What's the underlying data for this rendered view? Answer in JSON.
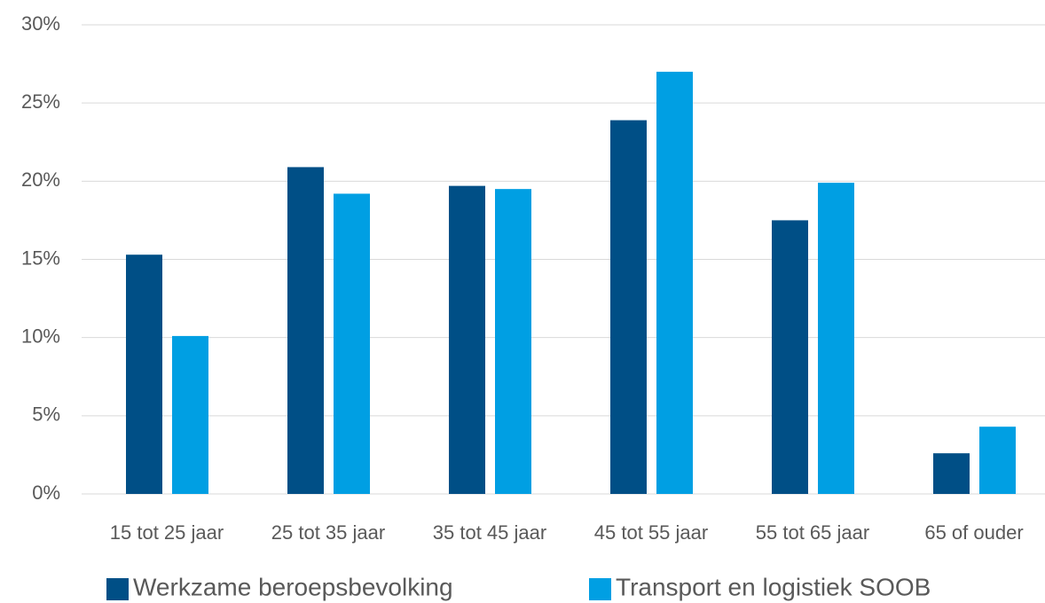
{
  "chart_data": {
    "type": "bar",
    "categories": [
      "15 tot 25 jaar",
      "25 tot 35 jaar",
      "35 tot 45 jaar",
      "45 tot 55 jaar",
      "55 tot 65 jaar",
      "65 of ouder"
    ],
    "series": [
      {
        "name": "Werkzame beroepsbevolking",
        "color": "#004f86",
        "values": [
          15.3,
          20.9,
          19.7,
          23.9,
          17.5,
          2.6
        ]
      },
      {
        "name": "Transport en logistiek SOOB",
        "color": "#009fe3",
        "values": [
          10.1,
          19.2,
          19.5,
          27.0,
          19.9,
          4.3
        ]
      }
    ],
    "ylim": [
      0,
      30
    ],
    "yticks": [
      {
        "value": 0,
        "label": "0%"
      },
      {
        "value": 5,
        "label": "5%"
      },
      {
        "value": 10,
        "label": "10%"
      },
      {
        "value": 15,
        "label": "15%"
      },
      {
        "value": 20,
        "label": "20%"
      },
      {
        "value": 25,
        "label": "25%"
      },
      {
        "value": 30,
        "label": "30%"
      }
    ],
    "grid": true,
    "legend": "bottom"
  }
}
